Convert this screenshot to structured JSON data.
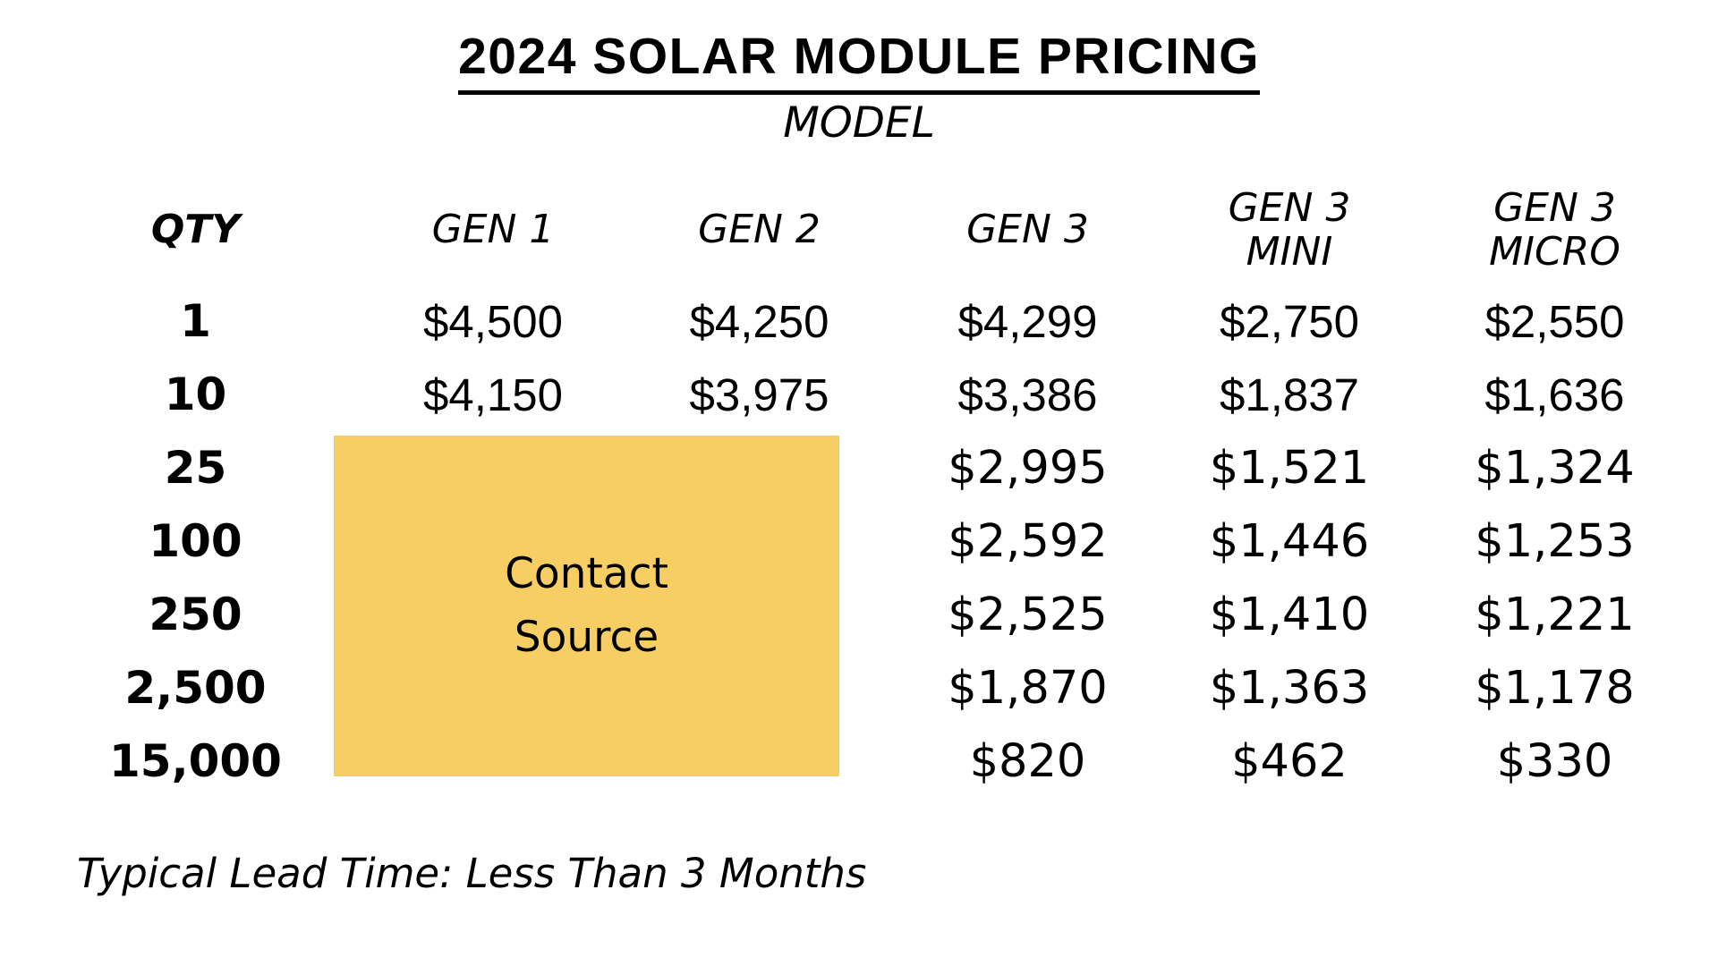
{
  "title": "2024 SOLAR MODULE PRICING",
  "group_header": "MODEL",
  "table": {
    "qty_header": "QTY",
    "columns": [
      {
        "label": "GEN 1"
      },
      {
        "label": "GEN 2"
      },
      {
        "label": "GEN 3"
      },
      {
        "line1": "GEN 3",
        "line2": "MINI"
      },
      {
        "line1": "GEN 3",
        "line2": "MICRO"
      }
    ],
    "rows": [
      {
        "qty": "1",
        "gen1": "$4,500",
        "gen2": "$4,250",
        "gen3": "$4,299",
        "gen3_mini": "$2,750",
        "gen3_micro": "$2,550"
      },
      {
        "qty": "10",
        "gen1": "$4,150",
        "gen2": "$3,975",
        "gen3": "$3,386",
        "gen3_mini": "$1,837",
        "gen3_micro": "$1,636"
      },
      {
        "qty": "25",
        "gen1": "",
        "gen2": "",
        "gen3": "$2,995",
        "gen3_mini": "$1,521",
        "gen3_micro": "$1,324"
      },
      {
        "qty": "100",
        "gen1": "",
        "gen2": "",
        "gen3": "$2,592",
        "gen3_mini": "$1,446",
        "gen3_micro": "$1,253"
      },
      {
        "qty": "250",
        "gen1": "",
        "gen2": "",
        "gen3": "$2,525",
        "gen3_mini": "$1,410",
        "gen3_micro": "$1,221"
      },
      {
        "qty": "2,500",
        "gen1": "",
        "gen2": "",
        "gen3": "$1,870",
        "gen3_mini": "$1,363",
        "gen3_micro": "$1,178"
      },
      {
        "qty": "15,000",
        "gen1": "",
        "gen2": "",
        "gen3": "$820",
        "gen3_mini": "$462",
        "gen3_micro": "$330"
      }
    ]
  },
  "overlay": {
    "line1": "Contact",
    "line2": "Source",
    "color": "#F6CE63"
  },
  "footer": "Typical Lead Time: Less Than 3 Months"
}
